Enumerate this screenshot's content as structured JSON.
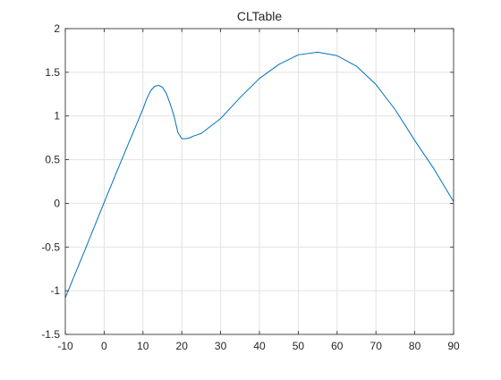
{
  "chart_data": {
    "type": "line",
    "title": "CLTable",
    "xlabel": "",
    "ylabel": "",
    "xlim": [
      -10,
      90
    ],
    "ylim": [
      -1.5,
      2
    ],
    "xticks": [
      "-10",
      "0",
      "10",
      "20",
      "30",
      "40",
      "50",
      "60",
      "70",
      "80",
      "90"
    ],
    "yticks": [
      "-1.5",
      "-1",
      "-0.5",
      "0",
      "0.5",
      "1",
      "1.5",
      "2"
    ],
    "grid": true,
    "series": [
      {
        "color": "#0072BD",
        "x": [
          -10,
          -5,
          0,
          5,
          10,
          11,
          12,
          13,
          14,
          15,
          16,
          17,
          18,
          19,
          20,
          21,
          22,
          23,
          25,
          30,
          35,
          40,
          45,
          50,
          55,
          60,
          65,
          70,
          75,
          80,
          85,
          90
        ],
        "y": [
          -1.08,
          -0.54,
          0.01,
          0.55,
          1.08,
          1.2,
          1.29,
          1.34,
          1.35,
          1.33,
          1.26,
          1.14,
          1.0,
          0.81,
          0.74,
          0.74,
          0.75,
          0.77,
          0.8,
          0.97,
          1.21,
          1.43,
          1.59,
          1.7,
          1.73,
          1.69,
          1.57,
          1.36,
          1.07,
          0.72,
          0.39,
          0.02
        ]
      }
    ]
  }
}
